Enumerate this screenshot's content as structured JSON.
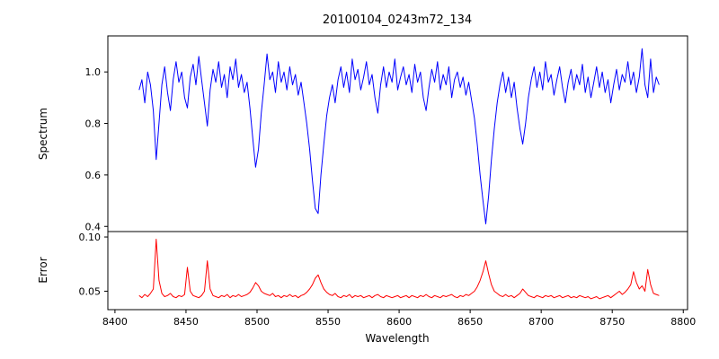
{
  "chart_data": {
    "type": "line",
    "title": "20100104_0243m72_134",
    "xlabel": "Wavelength",
    "xlim": [
      8395,
      8803
    ],
    "x_ticks": [
      8400,
      8450,
      8500,
      8550,
      8600,
      8650,
      8700,
      8750,
      8800
    ],
    "x_tick_labels": [
      "8400",
      "8450",
      "8500",
      "8550",
      "8600",
      "8650",
      "8700",
      "8750",
      "8800"
    ],
    "grid": false,
    "legend": "none",
    "subplots": [
      {
        "name": "spectrum",
        "ylabel": "Spectrum",
        "ylim": [
          0.38,
          1.14
        ],
        "y_ticks": [
          0.4,
          0.6,
          0.8,
          1.0
        ],
        "y_tick_labels": [
          "0.4",
          "0.6",
          "0.8",
          "1.0"
        ]
      },
      {
        "name": "error",
        "ylabel": "Error",
        "ylim": [
          0.033,
          0.105
        ],
        "y_ticks": [
          0.05,
          0.1
        ],
        "y_tick_labels": [
          "0.05",
          "0.10"
        ]
      }
    ],
    "series": [
      {
        "name": "spectrum",
        "subplot": 0,
        "color": "#0000ff",
        "x_start": 8417,
        "x_step": 2,
        "values": [
          0.93,
          0.97,
          0.88,
          1.0,
          0.95,
          0.85,
          0.66,
          0.8,
          0.95,
          1.02,
          0.92,
          0.85,
          0.97,
          1.04,
          0.96,
          1.0,
          0.9,
          0.86,
          0.98,
          1.03,
          0.95,
          1.06,
          0.97,
          0.88,
          0.79,
          0.93,
          1.01,
          0.96,
          1.04,
          0.94,
          0.99,
          0.9,
          1.02,
          0.97,
          1.05,
          0.94,
          0.99,
          0.92,
          0.96,
          0.86,
          0.74,
          0.63,
          0.7,
          0.84,
          0.95,
          1.07,
          0.97,
          1.0,
          0.92,
          1.04,
          0.96,
          1.0,
          0.93,
          1.02,
          0.95,
          0.99,
          0.91,
          0.96,
          0.88,
          0.8,
          0.7,
          0.58,
          0.47,
          0.45,
          0.6,
          0.72,
          0.83,
          0.9,
          0.95,
          0.88,
          0.97,
          1.02,
          0.94,
          1.0,
          0.92,
          1.05,
          0.97,
          1.01,
          0.93,
          0.98,
          1.04,
          0.95,
          0.99,
          0.9,
          0.84,
          0.95,
          1.02,
          0.94,
          1.0,
          0.96,
          1.05,
          0.93,
          0.98,
          1.02,
          0.95,
          0.99,
          0.92,
          1.03,
          0.96,
          1.0,
          0.9,
          0.85,
          0.94,
          1.01,
          0.96,
          1.04,
          0.93,
          0.99,
          0.95,
          1.02,
          0.9,
          0.97,
          1.0,
          0.94,
          0.98,
          0.91,
          0.96,
          0.89,
          0.82,
          0.72,
          0.6,
          0.5,
          0.41,
          0.52,
          0.66,
          0.78,
          0.88,
          0.95,
          1.0,
          0.92,
          0.98,
          0.9,
          0.96,
          0.86,
          0.78,
          0.72,
          0.8,
          0.9,
          0.97,
          1.02,
          0.94,
          1.0,
          0.93,
          1.04,
          0.96,
          0.99,
          0.91,
          0.97,
          1.02,
          0.94,
          0.88,
          0.96,
          1.01,
          0.93,
          0.99,
          0.95,
          1.03,
          0.92,
          0.98,
          0.9,
          0.96,
          1.02,
          0.94,
          1.0,
          0.92,
          0.97,
          0.88,
          0.95,
          1.01,
          0.93,
          0.99,
          0.96,
          1.04,
          0.95,
          1.0,
          0.92,
          0.98,
          1.09,
          0.95,
          0.9,
          1.05,
          0.92,
          0.98,
          0.95
        ]
      },
      {
        "name": "error",
        "subplot": 1,
        "color": "#ff0000",
        "x_start": 8417,
        "x_step": 2,
        "values": [
          0.046,
          0.044,
          0.047,
          0.045,
          0.048,
          0.052,
          0.098,
          0.06,
          0.048,
          0.045,
          0.046,
          0.048,
          0.045,
          0.044,
          0.046,
          0.045,
          0.047,
          0.072,
          0.05,
          0.046,
          0.045,
          0.044,
          0.046,
          0.05,
          0.078,
          0.052,
          0.046,
          0.045,
          0.044,
          0.046,
          0.045,
          0.047,
          0.044,
          0.046,
          0.045,
          0.047,
          0.045,
          0.046,
          0.047,
          0.049,
          0.053,
          0.058,
          0.055,
          0.05,
          0.048,
          0.047,
          0.046,
          0.048,
          0.045,
          0.046,
          0.044,
          0.046,
          0.045,
          0.047,
          0.045,
          0.046,
          0.044,
          0.046,
          0.047,
          0.049,
          0.052,
          0.056,
          0.062,
          0.065,
          0.058,
          0.052,
          0.049,
          0.047,
          0.046,
          0.048,
          0.045,
          0.044,
          0.046,
          0.045,
          0.047,
          0.044,
          0.046,
          0.045,
          0.046,
          0.044,
          0.045,
          0.046,
          0.044,
          0.046,
          0.047,
          0.045,
          0.044,
          0.046,
          0.045,
          0.044,
          0.045,
          0.046,
          0.044,
          0.045,
          0.046,
          0.044,
          0.046,
          0.045,
          0.044,
          0.046,
          0.045,
          0.047,
          0.045,
          0.044,
          0.046,
          0.045,
          0.044,
          0.046,
          0.045,
          0.046,
          0.047,
          0.045,
          0.044,
          0.046,
          0.045,
          0.047,
          0.046,
          0.048,
          0.05,
          0.054,
          0.06,
          0.068,
          0.078,
          0.066,
          0.056,
          0.05,
          0.048,
          0.046,
          0.045,
          0.047,
          0.045,
          0.046,
          0.044,
          0.046,
          0.048,
          0.052,
          0.049,
          0.046,
          0.045,
          0.044,
          0.046,
          0.045,
          0.044,
          0.046,
          0.045,
          0.046,
          0.044,
          0.045,
          0.046,
          0.044,
          0.045,
          0.046,
          0.044,
          0.045,
          0.044,
          0.046,
          0.045,
          0.044,
          0.045,
          0.043,
          0.044,
          0.045,
          0.043,
          0.044,
          0.045,
          0.046,
          0.044,
          0.046,
          0.048,
          0.05,
          0.047,
          0.049,
          0.052,
          0.056,
          0.068,
          0.058,
          0.052,
          0.055,
          0.05,
          0.07,
          0.056,
          0.048,
          0.047,
          0.046
        ]
      }
    ],
    "colors": {
      "spectrum_line": "#0000ff",
      "error_line": "#ff0000",
      "spine": "#000000",
      "text": "#000000",
      "background": "#ffffff"
    }
  }
}
